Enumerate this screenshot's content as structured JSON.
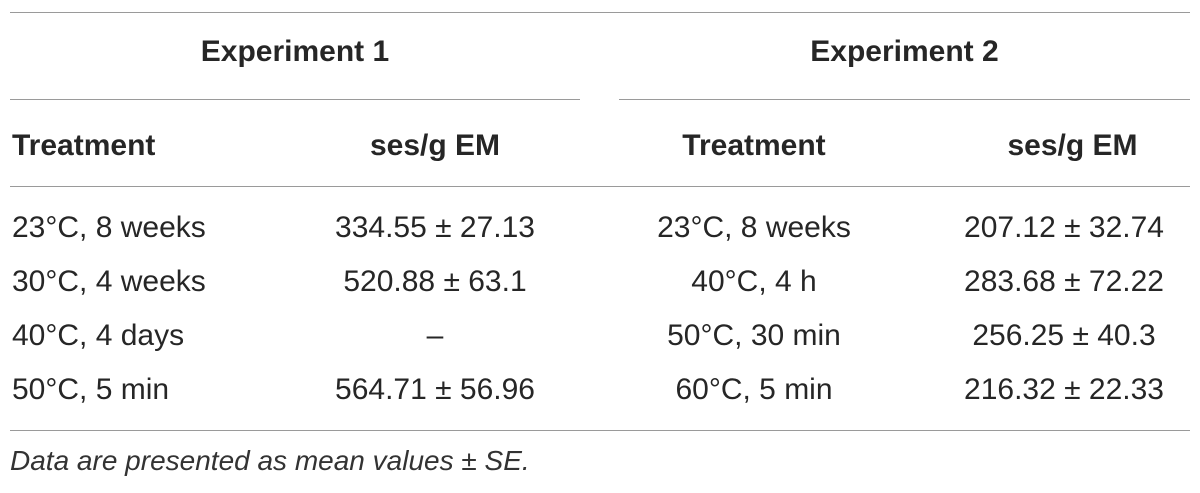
{
  "table": {
    "group_headers": [
      "Experiment 1",
      "Experiment 2"
    ],
    "column_headers": [
      "Treatment",
      "ses/g EM",
      "Treatment",
      "ses/g EM"
    ],
    "rows": [
      [
        "23°C, 8 weeks",
        "334.55 ± 27.13",
        "23°C, 8 weeks",
        "207.12 ± 32.74"
      ],
      [
        "30°C, 4 weeks",
        "520.88 ± 63.1",
        "40°C, 4 h",
        "283.68 ± 72.22"
      ],
      [
        "40°C, 4 days",
        "–",
        "50°C, 30 min",
        "256.25 ± 40.3"
      ],
      [
        "50°C, 5 min",
        "564.71 ± 56.96",
        "60°C, 5 min",
        "216.32 ± 22.33"
      ]
    ],
    "footnote": "Data are presented as mean values ± SE."
  }
}
